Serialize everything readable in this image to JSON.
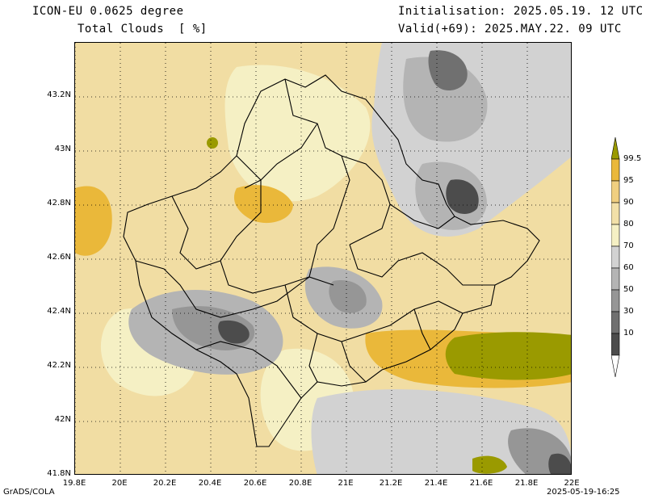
{
  "header": {
    "model": "ICON-EU 0.0625 degree",
    "field": "Total Clouds  [ %]",
    "init": "Initialisation: 2025.05.19. 12 UTC",
    "valid": "Valid(+69): 2025.MAY.22. 09 UTC"
  },
  "map": {
    "region": "Kosovo",
    "lat_labels": [
      "43.2N",
      "43N",
      "42.8N",
      "42.6N",
      "42.4N",
      "42.2N",
      "42N",
      "41.8N"
    ],
    "lon_labels": [
      "19.8E",
      "20E",
      "20.2E",
      "20.4E",
      "20.6E",
      "20.8E",
      "21E",
      "21.2E",
      "21.4E",
      "21.6E",
      "21.8E",
      "22E"
    ],
    "lat_range": [
      41.8,
      43.4
    ],
    "lon_range": [
      19.8,
      22.0
    ]
  },
  "legend": {
    "levels": [
      "99.5",
      "95",
      "90",
      "80",
      "70",
      "60",
      "50",
      "30",
      "10"
    ],
    "colors": [
      "#9a9a00",
      "#eab83a",
      "#f0cf80",
      "#f2e0a8",
      "#f5f0c4",
      "#d2d2d2",
      "#b4b4b4",
      "#969696",
      "#707070",
      "#4c4c4c",
      "#ffffff"
    ]
  },
  "footer": {
    "left": "GrADS/COLA",
    "right": "2025-05-19-16:25"
  }
}
